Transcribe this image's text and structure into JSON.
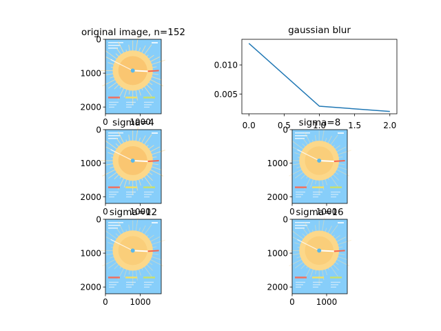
{
  "colors": {
    "line": "#1f77b4",
    "sky": "#87cefa",
    "sun_outer": "#fcd88a",
    "sun_inner": "#f7b85c",
    "ray": "#f9e0a8",
    "center": "#5bb8e8",
    "arrow_white": "#ffffff",
    "arrow_red": "#f4654f",
    "legend_red": "#f07060",
    "legend_yellow": "#f0e068",
    "legend_green": "#c8e070",
    "legend_white": "#e8f4fa"
  },
  "chart_data": [
    {
      "type": "image",
      "title": "original image, n=152",
      "xticks": [
        "0",
        "1000"
      ],
      "yticks": [
        "0",
        "1000",
        "2000"
      ],
      "extent_x": [
        0,
        1600
      ],
      "extent_y": [
        2200,
        0
      ]
    },
    {
      "type": "line",
      "title": "gaussian blur",
      "x": [
        0,
        1,
        2
      ],
      "y": [
        0.0137,
        0.0029,
        0.002
      ],
      "xlim": [
        -0.1,
        2.1
      ],
      "ylim": [
        0.0016,
        0.0144
      ],
      "xticks": [
        "0.0",
        "0.5",
        "1.0",
        "1.5",
        "2.0"
      ],
      "yticks": [
        "0.005",
        "0.010"
      ],
      "grid": false
    },
    {
      "type": "image",
      "title": "sigma=4",
      "xticks": [
        "0",
        "1000"
      ],
      "yticks": [
        "0",
        "1000",
        "2000"
      ],
      "extent_x": [
        0,
        1600
      ],
      "extent_y": [
        2200,
        0
      ]
    },
    {
      "type": "image",
      "title": "sigma=8",
      "xticks": [
        "0",
        "1000"
      ],
      "yticks": [
        "0",
        "1000",
        "2000"
      ],
      "extent_x": [
        0,
        1600
      ],
      "extent_y": [
        2200,
        0
      ]
    },
    {
      "type": "image",
      "title": "sigma=12",
      "xticks": [
        "0",
        "1000"
      ],
      "yticks": [
        "0",
        "1000",
        "2000"
      ],
      "extent_x": [
        0,
        1600
      ],
      "extent_y": [
        2200,
        0
      ]
    },
    {
      "type": "image",
      "title": "sigma=16",
      "xticks": [
        "0",
        "1000"
      ],
      "yticks": [
        "0",
        "1000",
        "2000"
      ],
      "extent_x": [
        0,
        1600
      ],
      "extent_y": [
        2200,
        0
      ]
    }
  ]
}
